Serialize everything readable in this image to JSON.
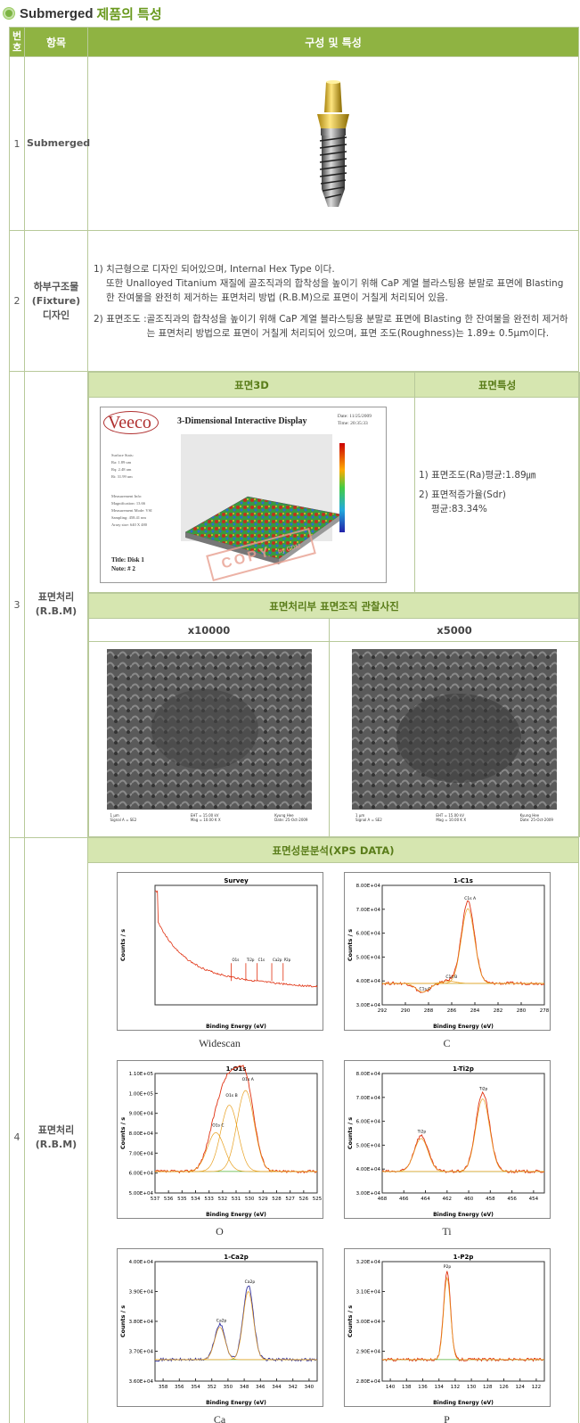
{
  "title": {
    "main": "Submerged",
    "accent": "제품의 특성"
  },
  "table": {
    "headers": {
      "num": "번호",
      "item": "항목",
      "spec": "구성 및 특성"
    },
    "rows": [
      {
        "num": "1",
        "item": "Submerged"
      },
      {
        "num": "2",
        "item": "하부구조물 (Fixture) 디자인",
        "item_lines": [
          "하부구조물",
          "(Fixture)",
          "디자인"
        ],
        "p1_line1": "1) 치근형으로 디자인 되어있으며, Internal Hex Type 이다.",
        "p1_line2": "또한 Unalloyed Titanium 재질에 골조직과의 합착성을 높이기 위해 CaP 계열 블라스팅용 분말로 표면에 Blasting 한 잔여물을 완전히 제거하는 표면처리 방법 (R.B.M)으로 표면이 거칠게 처리되어 있음.",
        "p2_key": "2) 표면조도 :",
        "p2_val": "골조직과의 합착성을 높이기 위해 CaP 계열 블라스팅용 분말로 표면에 Blasting 한 잔여물을 완전히 제거하는 표면처리 방법으로 표면이 거칠게 처리되어 있으며, 표면 조도(Roughness)는 1.89± 0.5μm이다."
      },
      {
        "num": "3",
        "item_lines": [
          "표면처리",
          "(R.B.M)"
        ],
        "sub_headers": {
          "a": "표면3D",
          "b": "표면특성"
        },
        "veeco": {
          "logo": "Veeco",
          "title": "3-Dimensional Interactive Display",
          "date": "Date: 11/25/2009",
          "time": "Time: 20:35:33",
          "meta1": [
            "Surface Stats:",
            "Ra: 1.89 um",
            "Rq: 2.48 um",
            "Rt: 31.99 um"
          ],
          "meta2": [
            "Measurement Info:",
            "Magnification: 13.66",
            "Measurement Mode: VSI",
            "Sampling: 458.41 nm",
            "Array size: 640 X 480"
          ],
          "note_title": "Title: Disk 1",
          "note_num": "Note: # 2",
          "stamp": "COPY",
          "stamp_suffix": "by CDM"
        },
        "surface_props": [
          "1) 표면조도(Ra)평균:1.89㎛",
          "2) 표면적증가율(Sdr)",
          "평균:83.34%"
        ],
        "photo_header": "표면처리부 표면조직 관찰사진",
        "mag_labels": [
          "x10000",
          "x5000"
        ],
        "sem_bar_left": [
          "1 μm",
          "Signal A = SE2"
        ],
        "sem_bar_mid": [
          "EHT = 15.00 kV",
          "Mag = 10.00 K X"
        ],
        "sem_bar_right": [
          "Kyung Hee",
          "Date: 25-Oct-2009"
        ]
      },
      {
        "num": "4",
        "item_lines": [
          "표면처리",
          "(R.B.M)"
        ],
        "xps_header": "표면성분분석(XPS DATA)",
        "captions": [
          "Widescan",
          "C",
          "O",
          "Ti",
          "Ca",
          "P"
        ]
      }
    ]
  },
  "chart_data": [
    {
      "type": "line",
      "title": "Survey",
      "xlabel": "Binding Energy (eV)",
      "ylabel": "Counts / s",
      "xlim": [
        1100,
        0
      ],
      "peaks": [
        "O1s",
        "Ti2p",
        "C1s",
        "Ca2p",
        "P2p"
      ]
    },
    {
      "type": "line",
      "title": "1-C1s",
      "xlabel": "Binding Energy (eV)",
      "ylabel": "Counts / s",
      "xlim": [
        292,
        278
      ],
      "ylim": [
        30000,
        80000
      ],
      "yticks": [
        "3.00E+04",
        "4.00E+04",
        "5.00E+04",
        "6.00E+04",
        "7.00E+04",
        "8.00E+04"
      ],
      "xticks": [
        292,
        290,
        288,
        286,
        284,
        282,
        280,
        278
      ],
      "peaks": [
        {
          "name": "C1s A",
          "x": 284.6,
          "y": 73000
        },
        {
          "name": "C1s B",
          "x": 286.2,
          "y": 40000
        },
        {
          "name": "C1s C",
          "x": 288.5,
          "y": 35000
        }
      ]
    },
    {
      "type": "line",
      "title": "1-O1s",
      "xlabel": "Binding Energy (eV)",
      "ylabel": "Counts / s",
      "xlim": [
        537,
        525
      ],
      "ylim": [
        50000,
        110000
      ],
      "yticks": [
        "5.00E+04",
        "6.00E+04",
        "7.00E+04",
        "8.00E+04",
        "9.00E+04",
        "1.00E+05",
        "1.10E+05"
      ],
      "xticks": [
        537,
        536,
        535,
        534,
        533,
        532,
        531,
        530,
        529,
        528,
        527,
        526,
        525
      ],
      "peaks": [
        {
          "name": "O1s A",
          "x": 530.3,
          "y": 105000
        },
        {
          "name": "O1s B",
          "x": 531.5,
          "y": 97000
        },
        {
          "name": "O1s C",
          "x": 532.5,
          "y": 82000
        }
      ]
    },
    {
      "type": "line",
      "title": "1-Ti2p",
      "xlabel": "Binding Energy (eV)",
      "ylabel": "Counts / s",
      "xlim": [
        468,
        453
      ],
      "ylim": [
        30000,
        80000
      ],
      "yticks": [
        "3.00E+04",
        "4.00E+04",
        "5.00E+04",
        "6.00E+04",
        "7.00E+04",
        "8.00E+04"
      ],
      "xticks": [
        468,
        466,
        464,
        462,
        460,
        458,
        456,
        454
      ],
      "peaks": [
        {
          "name": "Ti2p",
          "x": 458.7,
          "y": 72000
        },
        {
          "name": "Ti2p",
          "x": 464.4,
          "y": 54000
        }
      ]
    },
    {
      "type": "line",
      "title": "1-Ca2p",
      "xlabel": "Binding Energy (eV)",
      "ylabel": "Counts / s",
      "xlim": [
        359,
        339
      ],
      "ylim": [
        36000,
        40000
      ],
      "yticks": [
        "3.60E+04",
        "3.70E+04",
        "3.80E+04",
        "3.90E+04",
        "4.00E+04"
      ],
      "xticks": [
        358,
        356,
        354,
        352,
        350,
        348,
        346,
        344,
        342,
        340
      ],
      "peaks": [
        {
          "name": "Ca2p",
          "x": 347.5,
          "y": 39200
        },
        {
          "name": "Ca2p",
          "x": 351,
          "y": 37900
        }
      ]
    },
    {
      "type": "line",
      "title": "1-P2p",
      "xlabel": "Binding Energy (eV)",
      "ylabel": "Counts / s",
      "xlim": [
        141,
        121
      ],
      "ylim": [
        28000,
        32000
      ],
      "yticks": [
        "2.80E+04",
        "2.90E+04",
        "3.00E+04",
        "3.10E+04",
        "3.20E+04"
      ],
      "xticks": [
        140,
        138,
        136,
        134,
        132,
        130,
        128,
        126,
        124,
        122
      ],
      "peaks": [
        {
          "name": "P2p",
          "x": 133,
          "y": 31700
        }
      ]
    }
  ],
  "colors": {
    "accent": "#8fb342",
    "sub_header": "#d6e6b0",
    "border": "#b8c99a",
    "raw": "#e03010",
    "raw_alt": "#3030a0",
    "fit": "#e8a020",
    "baseline": "#50b030"
  }
}
